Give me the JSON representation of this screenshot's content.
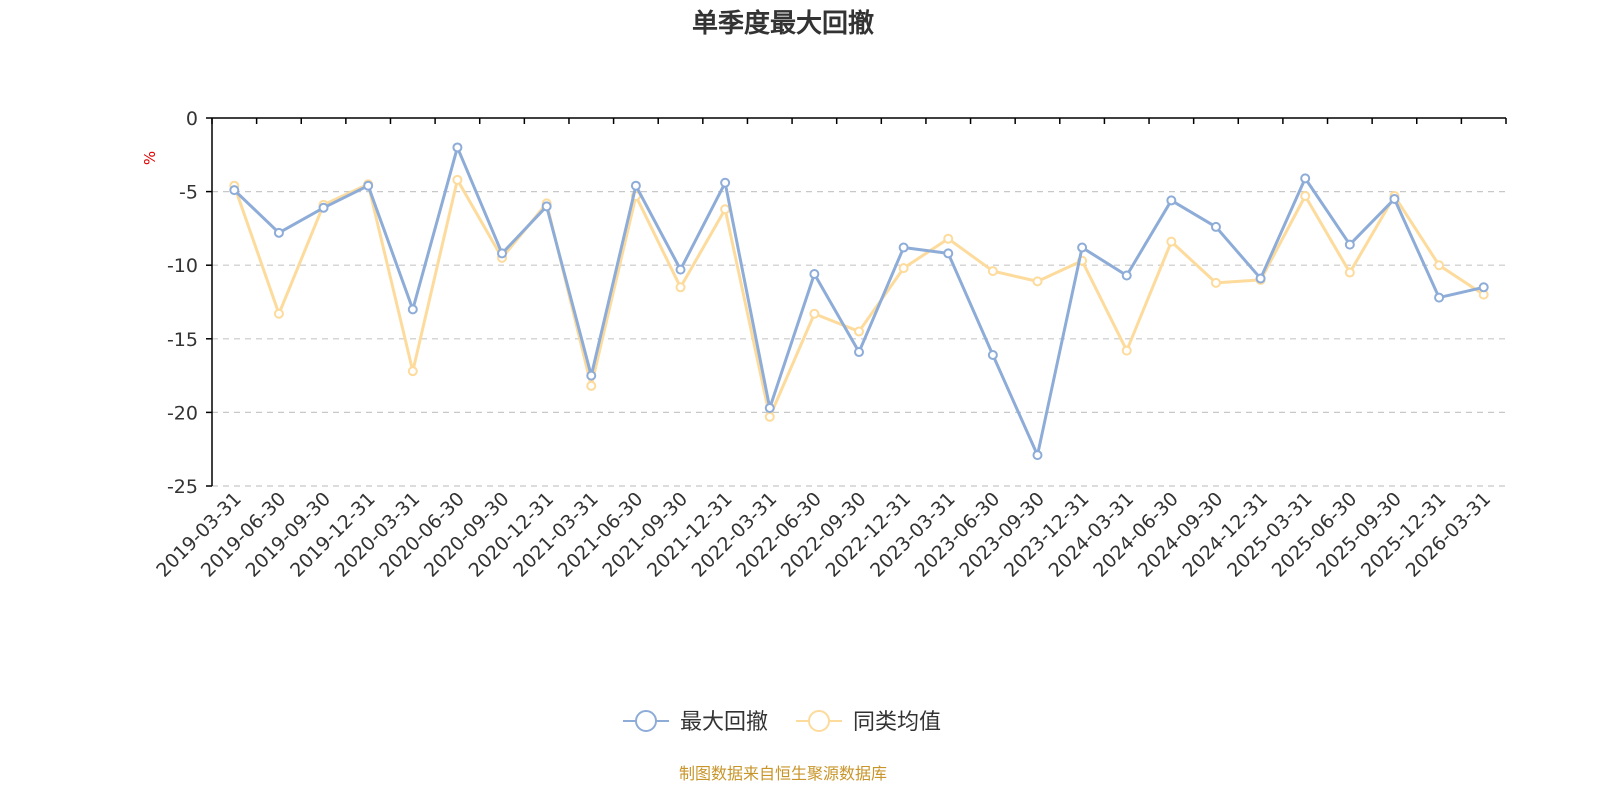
{
  "chart_data": {
    "type": "line",
    "title": "单季度最大回撤",
    "ylabel": "%",
    "xlabel": "",
    "ylim": [
      -25,
      0
    ],
    "yticks": [
      0,
      -5,
      -10,
      -15,
      -20,
      -25
    ],
    "ytick_labels": [
      "0",
      "-5",
      "-10",
      "-15",
      "-20",
      "-25"
    ],
    "grid": true,
    "legend_position": "bottom-center",
    "categories": [
      "2019-03-31",
      "2019-06-30",
      "2019-09-30",
      "2019-12-31",
      "2020-03-31",
      "2020-06-30",
      "2020-09-30",
      "2020-12-31",
      "2021-03-31",
      "2021-06-30",
      "2021-09-30",
      "2021-12-31",
      "2022-03-31",
      "2022-06-30",
      "2022-09-30",
      "2022-12-31",
      "2023-03-31",
      "2023-06-30",
      "2023-09-30",
      "2023-12-31",
      "2024-03-31",
      "2024-06-30",
      "2024-09-30",
      "2024-12-31",
      "2025-03-31",
      "2025-06-30",
      "2025-09-30",
      "2025-12-31",
      "2026-03-31"
    ],
    "series": [
      {
        "name": "最大回撤",
        "color": "#8eacd8",
        "values": [
          -4.9,
          -7.8,
          -6.1,
          -4.6,
          -13.0,
          -2.0,
          -9.2,
          -6.0,
          -17.5,
          -4.6,
          -10.3,
          -4.4,
          -19.7,
          -10.6,
          -15.9,
          -8.8,
          -9.2,
          -16.1,
          -22.9,
          -8.8,
          -10.7,
          -5.6,
          -7.4,
          -10.9,
          -4.1,
          -8.6,
          -5.5,
          -12.2,
          -11.5
        ]
      },
      {
        "name": "同类均值",
        "color": "#fddb9c",
        "values": [
          -4.6,
          -13.3,
          -5.9,
          -4.5,
          -17.2,
          -4.2,
          -9.5,
          -5.8,
          -18.2,
          -5.3,
          -11.5,
          -6.2,
          -20.3,
          -13.3,
          -14.5,
          -10.2,
          -8.2,
          -10.4,
          -11.1,
          -9.7,
          -15.8,
          -8.4,
          -11.2,
          -11.0,
          -5.3,
          -10.5,
          -5.3,
          -10.0,
          -12.0
        ]
      }
    ],
    "source": "制图数据来自恒生聚源数据库"
  },
  "colors": {
    "axis": "#000000",
    "grid": "#c8c8c8",
    "unit": "#e00000",
    "source": "#c8952a",
    "text": "#333333"
  }
}
